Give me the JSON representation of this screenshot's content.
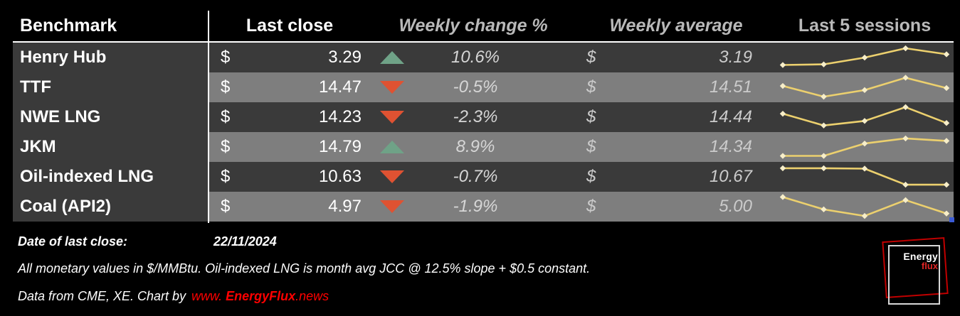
{
  "header": {
    "benchmark": "Benchmark",
    "last_close": "Last close",
    "weekly_change": "Weekly change %",
    "weekly_average": "Weekly average",
    "last_5_sessions": "Last 5 sessions"
  },
  "currency_symbol": "$",
  "chart_data": {
    "type": "table",
    "columns": [
      "Benchmark",
      "Last close",
      "Weekly change %",
      "Weekly average",
      "Last 5 sessions"
    ],
    "sparkline_note": "values normalized 0-1 within each row, 5 daily sessions left to right",
    "rows": [
      {
        "benchmark": "Henry Hub",
        "last_close": "3.29",
        "direction": "up",
        "weekly_change": "10.6%",
        "weekly_average": "3.19",
        "sparkline": [
          0.12,
          0.15,
          0.48,
          0.93,
          0.64
        ]
      },
      {
        "benchmark": "TTF",
        "last_close": "14.47",
        "direction": "down",
        "weekly_change": "-0.5%",
        "weekly_average": "14.51",
        "sparkline": [
          0.55,
          0.03,
          0.35,
          0.95,
          0.45
        ]
      },
      {
        "benchmark": "NWE LNG",
        "last_close": "14.23",
        "direction": "down",
        "weekly_change": "-2.3%",
        "weekly_average": "14.44",
        "sparkline": [
          0.65,
          0.08,
          0.3,
          0.97,
          0.2
        ]
      },
      {
        "benchmark": "JKM",
        "last_close": "14.79",
        "direction": "up",
        "weekly_change": "8.9%",
        "weekly_average": "14.34",
        "sparkline": [
          0.05,
          0.05,
          0.65,
          0.9,
          0.78
        ]
      },
      {
        "benchmark": "Oil-indexed LNG",
        "last_close": "10.63",
        "direction": "down",
        "weekly_change": "-0.7%",
        "weekly_average": "10.67",
        "sparkline": [
          0.9,
          0.9,
          0.88,
          0.1,
          0.1
        ]
      },
      {
        "benchmark": "Coal (API2)",
        "last_close": "4.97",
        "direction": "down",
        "weekly_change": "-1.9%",
        "weekly_average": "5.00",
        "sparkline": [
          0.95,
          0.35,
          0.03,
          0.8,
          0.15
        ]
      }
    ]
  },
  "footer": {
    "date_label": "Date of last close:",
    "date_value": "22/11/2024",
    "footnote": "All monetary values in $/MMBtu. Oil-indexed LNG is month avg JCC @ 12.5% slope + $0.5 constant.",
    "credit_prefix": "Data from CME, XE. Chart by",
    "credit_www": "www.",
    "credit_name": "EnergyFlux",
    "credit_tld": ".news"
  },
  "logo": {
    "line1": "Energy",
    "line2": "flux"
  },
  "colors": {
    "up_arrow": "#6fa287",
    "down_arrow": "#df5232",
    "sparkline_line": "#ecd06e",
    "sparkline_marker": "#f7eec9",
    "link_red": "#ff0000",
    "logo_red": "#c00000",
    "row_dark": "#3a3a3a",
    "row_light": "#7e7e7e"
  }
}
